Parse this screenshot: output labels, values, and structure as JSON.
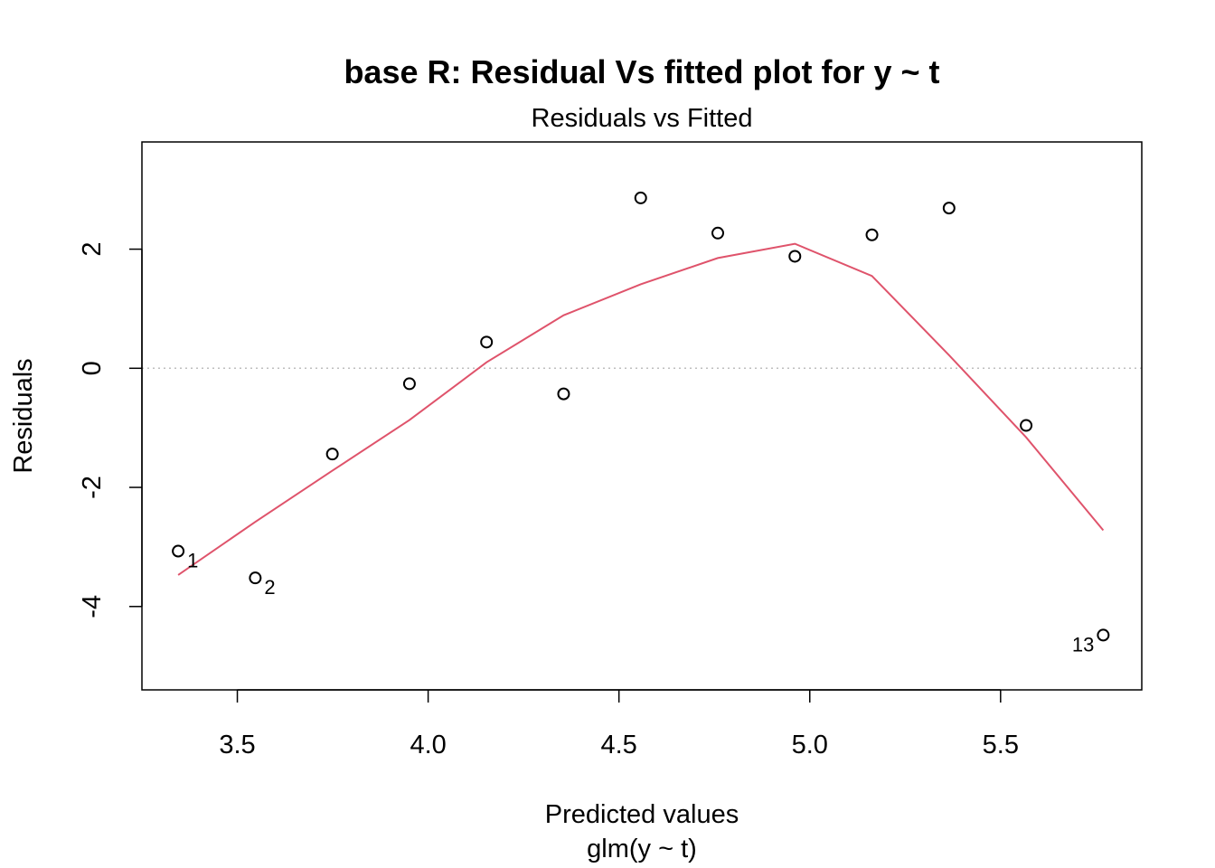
{
  "chart_data": {
    "type": "scatter",
    "title": "base R: Residual Vs fitted plot for y ~ t",
    "subtitle": "Residuals vs Fitted",
    "xlabel": "Predicted values",
    "xlabel_sub": "glm(y ~ t)",
    "ylabel": "Residuals",
    "xlim": [
      3.25,
      5.87
    ],
    "ylim": [
      -5.4,
      3.8
    ],
    "x_ticks": [
      3.5,
      4.0,
      4.5,
      5.0,
      5.5
    ],
    "x_tick_labels": [
      "3.5",
      "4.0",
      "4.5",
      "5.0",
      "5.5"
    ],
    "y_ticks": [
      -4,
      -2,
      0,
      2
    ],
    "y_tick_labels": [
      "-4",
      "-2",
      "0",
      "2"
    ],
    "reference_line": {
      "y": 0,
      "style": "dotted",
      "color": "#BEBEBE"
    },
    "points": {
      "x": [
        3.345,
        3.547,
        3.749,
        3.951,
        4.153,
        4.355,
        4.557,
        4.759,
        4.961,
        5.163,
        5.365,
        5.567,
        5.769
      ],
      "y": [
        -3.07,
        -3.52,
        -1.44,
        -0.26,
        0.44,
        -0.43,
        2.86,
        2.27,
        1.88,
        2.24,
        2.69,
        -0.96,
        -4.48
      ]
    },
    "point_labels": [
      {
        "index": 0,
        "text": "1",
        "side": "right"
      },
      {
        "index": 1,
        "text": "2",
        "side": "right"
      },
      {
        "index": 12,
        "text": "13",
        "side": "left"
      }
    ],
    "smoother": {
      "color": "#DF536B",
      "x": [
        3.345,
        3.547,
        3.749,
        3.951,
        4.153,
        4.355,
        4.557,
        4.759,
        4.961,
        5.163,
        5.365,
        5.567,
        5.769
      ],
      "y": [
        -3.47,
        -2.58,
        -1.72,
        -0.87,
        0.1,
        0.89,
        1.41,
        1.85,
        2.09,
        1.55,
        0.22,
        -1.16,
        -2.72
      ]
    }
  }
}
